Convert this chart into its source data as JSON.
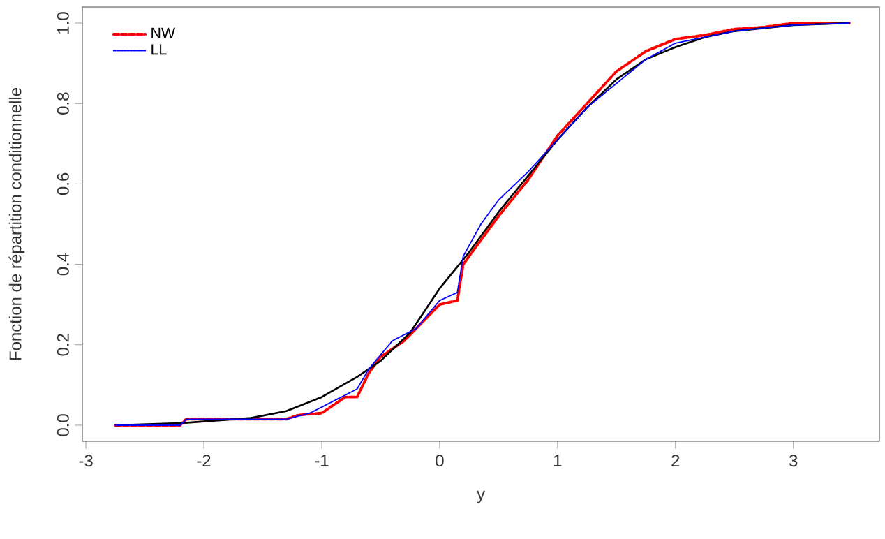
{
  "chart_data": {
    "type": "line",
    "xlabel": "y",
    "ylabel": "Fonction de répartition conditionnelle",
    "xlim": [
      -3.03,
      3.73
    ],
    "ylim": [
      -0.04,
      1.04
    ],
    "xticks": [
      -3,
      -2,
      -1,
      0,
      1,
      2,
      3
    ],
    "yticks": [
      {
        "value": 0,
        "label": "0.0"
      },
      {
        "value": 0.2,
        "label": "0.2"
      },
      {
        "value": 0.4,
        "label": "0.4"
      },
      {
        "value": 0.6,
        "label": "0.6"
      },
      {
        "value": 0.8,
        "label": "0.8"
      },
      {
        "value": 1,
        "label": "1.0"
      }
    ],
    "grid": false,
    "legend": "top left",
    "marker": "none",
    "series": [
      {
        "color": "#000000",
        "line_style": "solid",
        "x": [
          -2.75,
          -2.2,
          -1.6,
          -1.3,
          -1.0,
          -0.7,
          -0.5,
          -0.25,
          0,
          0.25,
          0.5,
          0.75,
          1.0,
          1.25,
          1.5,
          1.75,
          2.0,
          2.25,
          2.5,
          3.0,
          3.48
        ],
        "values": [
          0.0,
          0.005,
          0.018,
          0.035,
          0.07,
          0.12,
          0.16,
          0.23,
          0.34,
          0.43,
          0.53,
          0.62,
          0.71,
          0.79,
          0.86,
          0.91,
          0.94,
          0.965,
          0.98,
          0.995,
          1.0
        ]
      },
      {
        "name": "NW",
        "color": "#ff0000",
        "line_style": "dashed",
        "x": [
          -2.75,
          -2.2,
          -2.15,
          -1.3,
          -1.2,
          -1.0,
          -0.9,
          -0.8,
          -0.7,
          -0.6,
          -0.5,
          -0.3,
          -0.2,
          0,
          0.15,
          0.2,
          0.35,
          0.5,
          0.75,
          1.0,
          1.25,
          1.5,
          1.75,
          2.0,
          2.25,
          2.5,
          2.75,
          3.0,
          3.48
        ],
        "values": [
          0,
          0,
          0.015,
          0.015,
          0.025,
          0.03,
          0.05,
          0.07,
          0.07,
          0.13,
          0.17,
          0.21,
          0.24,
          0.3,
          0.31,
          0.4,
          0.46,
          0.52,
          0.61,
          0.72,
          0.8,
          0.88,
          0.93,
          0.96,
          0.97,
          0.985,
          0.99,
          1.0,
          1.0
        ]
      },
      {
        "name": "LL",
        "color": "#0000ff",
        "line_style": "dotted",
        "x": [
          -2.75,
          -2.2,
          -2.15,
          -1.3,
          -1.1,
          -0.9,
          -0.7,
          -0.6,
          -0.4,
          -0.2,
          0,
          0.15,
          0.2,
          0.35,
          0.5,
          0.75,
          1.0,
          1.25,
          1.5,
          1.75,
          2.0,
          2.5,
          3.0,
          3.48
        ],
        "values": [
          0,
          0,
          0.015,
          0.015,
          0.03,
          0.06,
          0.09,
          0.14,
          0.21,
          0.24,
          0.31,
          0.33,
          0.42,
          0.5,
          0.56,
          0.63,
          0.71,
          0.79,
          0.85,
          0.91,
          0.95,
          0.98,
          0.995,
          1.0
        ]
      }
    ]
  }
}
